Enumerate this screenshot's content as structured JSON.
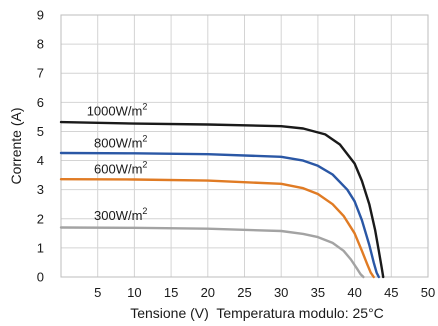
{
  "chart_data": {
    "type": "line",
    "title": "",
    "xlabel": "Tensione (V)  Temperatura modulo: 25°C",
    "ylabel": "Corrente (A)",
    "xlim": [
      0,
      50
    ],
    "ylim": [
      0,
      9
    ],
    "x_ticks": [
      5,
      10,
      15,
      20,
      25,
      30,
      35,
      40,
      45,
      50
    ],
    "y_ticks": [
      0,
      1,
      2,
      3,
      4,
      5,
      6,
      7,
      8,
      9
    ],
    "grid": true,
    "legend": "none",
    "series": [
      {
        "name": "1000W/m2",
        "color": "#1a1a1a",
        "x": [
          0,
          10,
          20,
          30,
          33,
          36,
          38,
          40,
          41,
          42,
          42.8,
          43.3,
          43.7,
          43.9
        ],
        "y": [
          5.32,
          5.27,
          5.24,
          5.18,
          5.1,
          4.9,
          4.55,
          3.9,
          3.3,
          2.5,
          1.6,
          0.9,
          0.3,
          0
        ]
      },
      {
        "name": "800W/m2",
        "color": "#2a57a5",
        "x": [
          0,
          10,
          20,
          30,
          33,
          35,
          37,
          39,
          40,
          41,
          42,
          42.6,
          43,
          43.3
        ],
        "y": [
          4.26,
          4.25,
          4.22,
          4.13,
          4.0,
          3.82,
          3.52,
          3.0,
          2.6,
          1.95,
          1.1,
          0.5,
          0.15,
          0
        ]
      },
      {
        "name": "600W/m2",
        "color": "#e07b24",
        "x": [
          0,
          10,
          20,
          30,
          33,
          35,
          37,
          38.5,
          40,
          41,
          41.7,
          42.2,
          42.6
        ],
        "y": [
          3.36,
          3.35,
          3.31,
          3.2,
          3.05,
          2.85,
          2.5,
          2.1,
          1.5,
          0.9,
          0.45,
          0.15,
          0
        ]
      },
      {
        "name": "300W/m2",
        "color": "#a3a3a3",
        "x": [
          0,
          10,
          20,
          30,
          33,
          35,
          37,
          38.5,
          39.5,
          40.3,
          40.8,
          41.2
        ],
        "y": [
          1.7,
          1.69,
          1.66,
          1.58,
          1.48,
          1.37,
          1.17,
          0.9,
          0.6,
          0.3,
          0.1,
          0
        ]
      }
    ],
    "annotations": [
      {
        "base": "1000W/m",
        "sup": "2",
        "x": 3.5,
        "y": 5.55
      },
      {
        "base": "800W/m",
        "sup": "2",
        "x": 4.5,
        "y": 4.45
      },
      {
        "base": "600W/m",
        "sup": "2",
        "x": 4.5,
        "y": 3.55
      },
      {
        "base": "300W/m",
        "sup": "2",
        "x": 4.5,
        "y": 1.95
      }
    ]
  }
}
